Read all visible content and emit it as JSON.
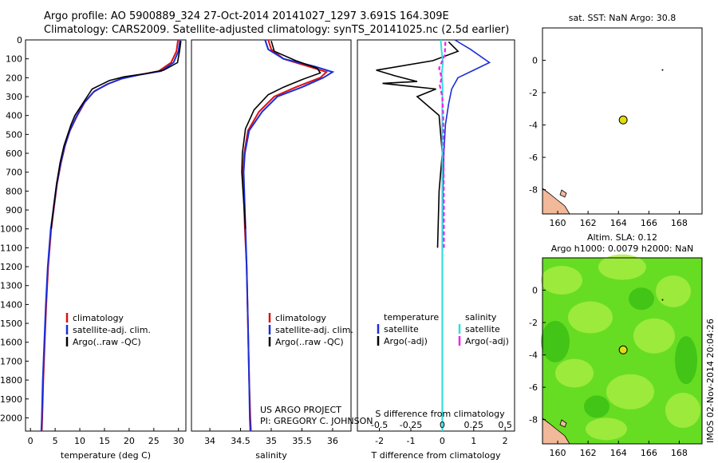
{
  "header": {
    "line1": "Argo profile: AO 5900889_324 27-Oct-2014 20141027_1297 3.691S 164.309E",
    "line2": "Climatology: CARS2009. Satellite-adjusted climatology: synTS_20141025.nc (2.5d earlier)"
  },
  "footer": {
    "project": "US ARGO PROJECT",
    "pi": "PI: GREGORY C. JOHNSON",
    "stamp": "IMOS 02-Nov-2014 20:04:26"
  },
  "colors": {
    "climatology": "#dd1111",
    "satellite": "#1a2ed8",
    "argo": "#000000",
    "salinity_satellite": "#33dddd",
    "salinity_argo": "#ee22ee",
    "sla_field": "#66dd22",
    "land": "#f2b89a",
    "marker": "#dddd11"
  },
  "chart_data": [
    {
      "type": "line",
      "name": "temperature-profile",
      "xlabel": "temperature (deg C)",
      "ylabel": "",
      "xlim": [
        -1,
        31.5
      ],
      "ylim": [
        2070,
        0
      ],
      "xticks": [
        0,
        5,
        10,
        15,
        20,
        25,
        30
      ],
      "yticks": [
        0,
        100,
        200,
        300,
        400,
        500,
        600,
        700,
        800,
        900,
        1000,
        1100,
        1200,
        1300,
        1400,
        1500,
        1600,
        1700,
        1800,
        1900,
        2000
      ],
      "legend": [
        "climatology",
        "satellite-adj. clim.",
        "Argo(..raw -QC)"
      ],
      "series": [
        {
          "name": "climatology",
          "x": [
            29.9,
            29.6,
            28.5,
            26.0,
            22.0,
            19.0,
            16.0,
            13.0,
            11.0,
            9.5,
            8.0,
            7.0,
            6.2,
            5.4,
            4.8,
            4.2,
            3.6,
            3.2,
            2.9,
            2.6,
            2.4,
            2.3
          ],
          "y": [
            0,
            60,
            120,
            165,
            185,
            200,
            230,
            270,
            330,
            400,
            480,
            560,
            650,
            760,
            880,
            1000,
            1200,
            1400,
            1600,
            1800,
            2000,
            2070
          ]
        },
        {
          "name": "satellite-adj. clim.",
          "x": [
            30.3,
            30.0,
            29.0,
            26.5,
            22.0,
            18.5,
            15.5,
            12.8,
            10.8,
            9.3,
            7.9,
            6.9,
            6.1,
            5.3,
            4.7,
            4.1,
            3.5,
            3.1,
            2.8,
            2.5,
            2.3,
            2.2
          ],
          "y": [
            0,
            60,
            120,
            165,
            185,
            205,
            235,
            275,
            335,
            405,
            485,
            565,
            655,
            765,
            885,
            1005,
            1205,
            1405,
            1605,
            1805,
            2005,
            2070
          ]
        },
        {
          "name": "Argo(..raw -QC)",
          "x": [
            30.5,
            30.2,
            29.8,
            27.0,
            23.0,
            19.0,
            16.0,
            12.5,
            11.5,
            9.0,
            8.2,
            6.8,
            6.0,
            5.3,
            4.7,
            4.2
          ],
          "y": [
            5,
            60,
            120,
            160,
            180,
            195,
            215,
            260,
            300,
            400,
            450,
            560,
            650,
            760,
            880,
            1000
          ]
        }
      ]
    },
    {
      "type": "line",
      "name": "salinity-profile",
      "xlabel": "salinity",
      "xlim": [
        33.7,
        36.3
      ],
      "ylim": [
        2070,
        0
      ],
      "xticks": [
        34,
        34.5,
        35,
        35.5,
        36
      ],
      "legend": [
        "climatology",
        "satellite-adj. clim.",
        "Argo(..raw -QC)"
      ],
      "series": [
        {
          "name": "climatology",
          "x": [
            34.95,
            35.0,
            35.2,
            35.6,
            35.9,
            35.8,
            35.4,
            35.05,
            34.8,
            34.62,
            34.56,
            34.54,
            34.55,
            34.57,
            34.6,
            34.62,
            34.64,
            34.66,
            34.67
          ],
          "y": [
            0,
            50,
            100,
            140,
            170,
            200,
            250,
            300,
            380,
            480,
            600,
            700,
            800,
            1000,
            1200,
            1500,
            1800,
            2000,
            2070
          ]
        },
        {
          "name": "satellite-adj. clim.",
          "x": [
            34.9,
            34.95,
            35.2,
            35.7,
            36.0,
            35.85,
            35.5,
            35.1,
            34.85,
            34.64,
            34.57,
            34.55,
            34.56,
            34.58,
            34.6,
            34.62,
            34.64,
            34.65,
            34.66
          ],
          "y": [
            0,
            50,
            100,
            140,
            170,
            200,
            250,
            300,
            380,
            480,
            600,
            700,
            800,
            1000,
            1200,
            1500,
            1800,
            2000,
            2070
          ]
        },
        {
          "name": "Argo(..raw -QC)",
          "x": [
            35.0,
            35.05,
            35.4,
            35.75,
            35.8,
            35.5,
            35.2,
            34.95,
            34.72,
            34.58,
            34.53,
            34.52,
            34.54,
            34.56,
            34.58
          ],
          "y": [
            5,
            60,
            110,
            150,
            175,
            210,
            250,
            290,
            370,
            470,
            600,
            700,
            800,
            900,
            1000
          ]
        }
      ]
    },
    {
      "type": "line",
      "name": "difference-profile",
      "xlabel": "T difference from climatology",
      "xlabel_top": "S difference from climatology",
      "xlim": [
        -2.7,
        2.3
      ],
      "ylim": [
        2070,
        0
      ],
      "xticks": [
        -2,
        -1,
        0,
        1,
        2
      ],
      "xticks_top": [
        -0.5,
        -0.25,
        0,
        0.25,
        0.5
      ],
      "legend_titles": [
        "temperature",
        "salinity"
      ],
      "legend": [
        "satellite",
        "Argo(-adj)",
        "satellite",
        "Argo(-adj)"
      ],
      "series": [
        {
          "name": "temperature satellite",
          "x": [
            0.4,
            0.9,
            1.5,
            1.0,
            0.5,
            0.3,
            0.2,
            0.1,
            0.05,
            0.02,
            0.0,
            0.0,
            0.0
          ],
          "y": [
            0,
            50,
            120,
            160,
            200,
            260,
            340,
            450,
            600,
            800,
            1200,
            1600,
            2070
          ]
        },
        {
          "name": "temperature Argo(-adj)",
          "x": [
            0.2,
            0.5,
            -0.3,
            -2.1,
            -1.5,
            -0.8,
            -1.9,
            -0.2,
            -0.8,
            -0.1,
            0.0,
            -0.1,
            -0.15
          ],
          "y": [
            10,
            60,
            110,
            160,
            190,
            220,
            230,
            260,
            300,
            400,
            600,
            800,
            1100
          ]
        },
        {
          "name": "salinity satellite",
          "x": [
            -0.05,
            -0.02,
            0.02,
            -0.02,
            0.01,
            0.0,
            0.0,
            0.0,
            0.0
          ],
          "y": [
            0,
            60,
            120,
            180,
            250,
            350,
            600,
            1000,
            2070
          ]
        },
        {
          "name": "salinity Argo(-adj)",
          "x": [
            0.1,
            0.08,
            -0.1,
            -0.02,
            -0.08,
            0.0,
            0.03,
            0.04,
            0.05,
            0.05
          ],
          "y": [
            10,
            80,
            150,
            200,
            240,
            300,
            400,
            600,
            900,
            1100
          ]
        }
      ]
    },
    {
      "type": "scatter",
      "name": "sst-map",
      "title": "sat. SST: NaN Argo: 30.8",
      "xlim": [
        159,
        169.5
      ],
      "ylim": [
        -9.5,
        2
      ],
      "xticks": [
        160,
        162,
        164,
        166,
        168
      ],
      "yticks": [
        0,
        -2,
        -4,
        -6,
        -8
      ],
      "argo_position": {
        "x": 164.31,
        "y": -3.69
      }
    },
    {
      "type": "heatmap",
      "name": "sla-map",
      "title": "Altim. SLA: 0.12",
      "subtitle": "Argo h1000: 0.0079 h2000: NaN",
      "xlim": [
        159,
        169.5
      ],
      "ylim": [
        -9.5,
        2
      ],
      "xticks": [
        160,
        162,
        164,
        166,
        168
      ],
      "yticks": [
        0,
        -2,
        -4,
        -6,
        -8
      ],
      "argo_position": {
        "x": 164.31,
        "y": -3.69
      }
    }
  ]
}
